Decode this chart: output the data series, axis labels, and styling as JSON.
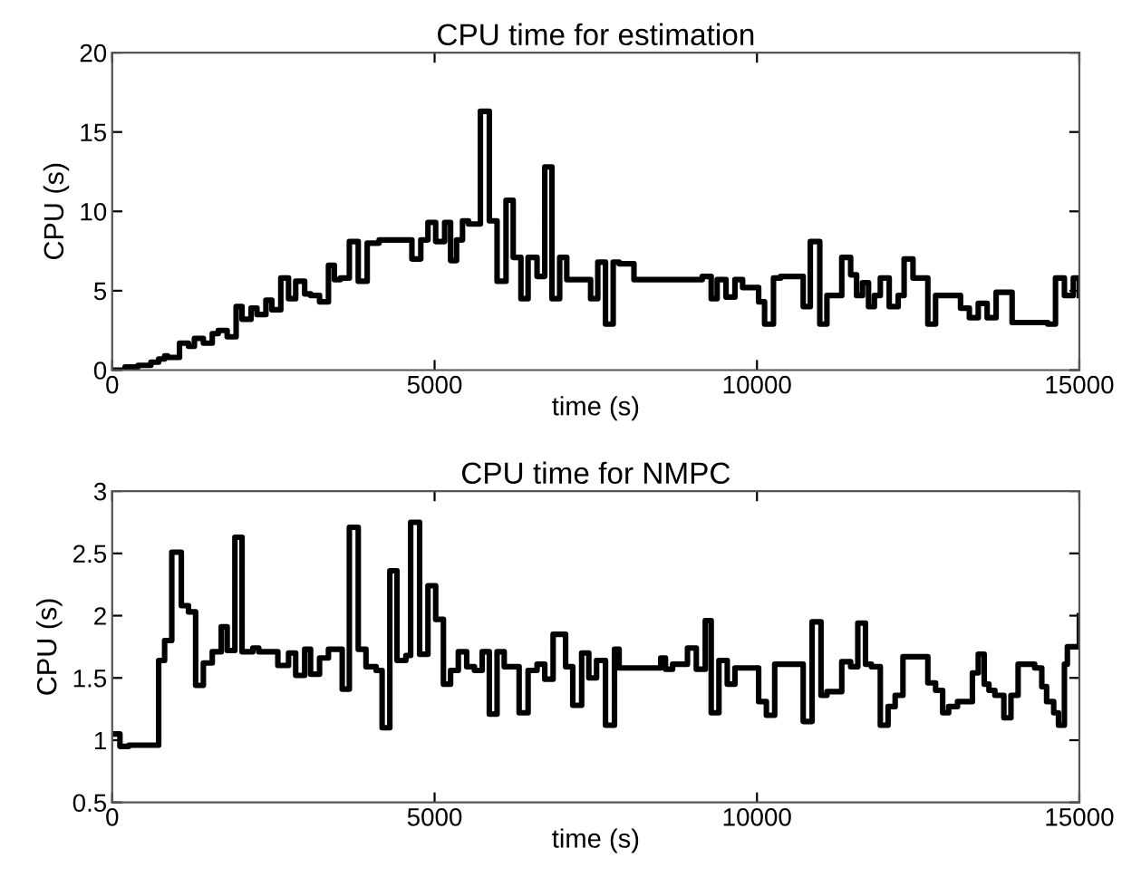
{
  "chart_data": [
    {
      "type": "step",
      "title": "CPU time for estimation",
      "xlabel": "time (s)",
      "ylabel": "CPU (s)",
      "xlim": [
        0,
        15000
      ],
      "ylim": [
        0,
        20
      ],
      "xticks": [
        0,
        5000,
        10000,
        15000
      ],
      "yticks": [
        0,
        5,
        10,
        15,
        20
      ],
      "grid": false,
      "series": [
        {
          "color": "#000000",
          "x": [
            0,
            200,
            400,
            600,
            721,
            813,
            859,
            1044,
            1183,
            1275,
            1414,
            1552,
            1645,
            1783,
            1922,
            2014,
            2153,
            2245,
            2384,
            2476,
            2615,
            2735,
            2846,
            2985,
            3077,
            3216,
            3354,
            3446,
            3539,
            3678,
            3816,
            3955,
            4140,
            4648,
            4786,
            4897,
            5017,
            5156,
            5248,
            5341,
            5433,
            5526,
            5710,
            5849,
            5969,
            6108,
            6219,
            6339,
            6450,
            6589,
            6709,
            6820,
            6940,
            7050,
            7420,
            7531,
            7651,
            7770,
            7862,
            8092,
            9151,
            9290,
            9382,
            9520,
            9658,
            9777,
            10026,
            10118,
            10256,
            10367,
            10717,
            10827,
            10974,
            11085,
            11315,
            11453,
            11545,
            11637,
            11730,
            11821,
            11913,
            12051,
            12190,
            12282,
            12420,
            12650,
            12770,
            13157,
            13294,
            13432,
            13570,
            13709,
            13957,
            14510,
            14630,
            14768,
            14906,
            15000
          ],
          "values": [
            0,
            0.2,
            0.3,
            0.5,
            0.7,
            0.9,
            0.8,
            1.7,
            1.5,
            2.0,
            1.7,
            2.3,
            2.5,
            2.1,
            4.0,
            3.2,
            3.9,
            3.5,
            4.4,
            3.8,
            5.8,
            4.5,
            5.6,
            4.8,
            4.7,
            4.3,
            6.6,
            5.7,
            5.8,
            8.1,
            5.6,
            8.0,
            8.2,
            7.0,
            8.2,
            9.3,
            8.1,
            9.3,
            6.9,
            8.2,
            9.4,
            9.2,
            16.3,
            9.4,
            5.6,
            10.7,
            7.1,
            4.5,
            7.1,
            5.9,
            12.8,
            4.5,
            7.1,
            5.7,
            4.5,
            6.8,
            2.9,
            6.8,
            6.7,
            5.7,
            5.9,
            4.5,
            5.7,
            4.6,
            5.7,
            5.2,
            4.3,
            2.9,
            5.8,
            5.9,
            4.0,
            8.1,
            2.9,
            4.7,
            7.1,
            6.0,
            4.7,
            5.5,
            4.0,
            4.7,
            5.8,
            4.0,
            4.7,
            7.0,
            5.8,
            2.9,
            4.7,
            3.9,
            3.3,
            4.2,
            3.3,
            4.9,
            3.0,
            2.9,
            5.8,
            4.7,
            5.8,
            4.7
          ]
        }
      ]
    },
    {
      "type": "step",
      "title": "CPU time for NMPC",
      "xlabel": "time (s)",
      "ylabel": "CPU (s)",
      "xlim": [
        0,
        15000
      ],
      "ylim": [
        0.5,
        3
      ],
      "xticks": [
        0,
        5000,
        10000,
        15000
      ],
      "yticks": [
        0.5,
        1,
        1.5,
        2,
        2.5,
        3
      ],
      "grid": false,
      "series": [
        {
          "color": "#000000",
          "x": [
            0,
            120,
            259,
            721,
            813,
            924,
            1072,
            1183,
            1294,
            1414,
            1552,
            1691,
            1783,
            1903,
            2014,
            2181,
            2273,
            2569,
            2735,
            2846,
            2985,
            3077,
            3216,
            3354,
            3567,
            3678,
            3816,
            3936,
            4093,
            4186,
            4306,
            4417,
            4555,
            4629,
            4768,
            4897,
            5017,
            5137,
            5248,
            5368,
            5498,
            5618,
            5738,
            5849,
            5969,
            6080,
            6311,
            6450,
            6589,
            6709,
            6838,
            7032,
            7143,
            7281,
            7392,
            7512,
            7651,
            7790,
            7862,
            8507,
            8581,
            8691,
            8922,
            9059,
            9198,
            9290,
            9410,
            9539,
            9658,
            10026,
            10146,
            10275,
            10717,
            10855,
            10993,
            11085,
            11315,
            11453,
            11564,
            11683,
            11775,
            11913,
            12033,
            12143,
            12264,
            12650,
            12770,
            12880,
            12973,
            13110,
            13341,
            13432,
            13524,
            13598,
            13690,
            13829,
            13939,
            14050,
            14307,
            14417,
            14492,
            14602,
            14676,
            14768,
            14814,
            15000
          ],
          "values": [
            1.05,
            0.95,
            0.96,
            1.64,
            1.8,
            2.51,
            2.08,
            2.03,
            1.44,
            1.62,
            1.71,
            1.91,
            1.72,
            2.63,
            1.71,
            1.74,
            1.71,
            1.6,
            1.7,
            1.52,
            1.73,
            1.53,
            1.66,
            1.73,
            1.41,
            2.71,
            1.73,
            1.59,
            1.56,
            1.1,
            2.36,
            1.64,
            1.68,
            2.75,
            1.69,
            2.24,
            1.97,
            1.45,
            1.56,
            1.71,
            1.59,
            1.56,
            1.71,
            1.21,
            1.71,
            1.59,
            1.22,
            1.56,
            1.61,
            1.49,
            1.85,
            1.59,
            1.28,
            1.7,
            1.5,
            1.64,
            1.12,
            1.73,
            1.58,
            1.66,
            1.57,
            1.61,
            1.74,
            1.57,
            1.96,
            1.22,
            1.64,
            1.45,
            1.58,
            1.31,
            1.2,
            1.61,
            1.15,
            1.95,
            1.36,
            1.39,
            1.63,
            1.59,
            1.94,
            1.61,
            1.59,
            1.12,
            1.27,
            1.36,
            1.67,
            1.46,
            1.4,
            1.22,
            1.27,
            1.31,
            1.54,
            1.69,
            1.45,
            1.4,
            1.36,
            1.18,
            1.36,
            1.61,
            1.58,
            1.43,
            1.31,
            1.22,
            1.12,
            1.61,
            1.75,
            2.0
          ]
        }
      ]
    }
  ]
}
